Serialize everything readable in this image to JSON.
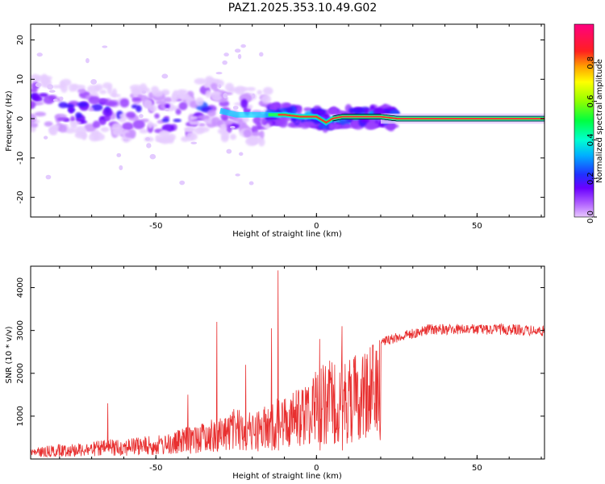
{
  "title": "PAZ1.2025.353.10.49.G02",
  "chart_data": [
    {
      "type": "heatmap",
      "title": "",
      "xlabel": "Height of straight line (km)",
      "ylabel": "Frequency (Hz)",
      "xlim": [
        -89,
        71
      ],
      "ylim": [
        -25,
        24
      ],
      "xticks": [
        -50,
        0,
        50
      ],
      "yticks": [
        -20,
        -10,
        0,
        10,
        20
      ],
      "ridge": {
        "x": [
          -89,
          -80,
          -70,
          -60,
          -50,
          -40,
          -35,
          -30,
          -25,
          -20,
          -15,
          -10,
          -5,
          0,
          3,
          5,
          8,
          10,
          15,
          20,
          25,
          40,
          55,
          71
        ],
        "frequency": [
          4,
          3,
          2,
          1.5,
          1,
          0.5,
          4,
          2,
          1,
          1,
          1,
          1,
          0.5,
          0.5,
          -1,
          0,
          0.5,
          0.5,
          0.5,
          0.5,
          0,
          0,
          0,
          0
        ]
      },
      "colorbar": {
        "label": "Normalized spectral amplitude",
        "range": [
          0,
          1
        ],
        "ticks": [
          0.0,
          0.2,
          0.4,
          0.6,
          0.8
        ],
        "tick_labels": [
          "0.0",
          "0.2",
          "0.4",
          "0.6",
          "0.8"
        ]
      }
    },
    {
      "type": "line",
      "title": "",
      "xlabel": "Height of straight line (km)",
      "ylabel": "SNR (10 * v/v)",
      "xlim": [
        -89,
        71
      ],
      "ylim": [
        0,
        4500
      ],
      "xticks": [
        -50,
        0,
        50
      ],
      "yticks": [
        1000,
        2000,
        3000,
        4000
      ],
      "color": "#e83030",
      "series": [
        {
          "name": "SNR",
          "envelope_x": [
            -89,
            -80,
            -70,
            -60,
            -50,
            -45,
            -40,
            -35,
            -30,
            -25,
            -20,
            -15,
            -10,
            -5,
            0,
            5,
            10,
            15,
            20,
            25,
            30,
            35,
            40,
            50,
            60,
            71
          ],
          "envelope_y": [
            250,
            350,
            400,
            500,
            550,
            600,
            800,
            900,
            1000,
            1200,
            1100,
            1300,
            1500,
            1700,
            2300,
            2300,
            2400,
            2700,
            2850,
            2950,
            3050,
            3150,
            3150,
            3150,
            3150,
            3100
          ],
          "spikes": [
            {
              "x": -31,
              "y": 3200
            },
            {
              "x": -12,
              "y": 4400
            },
            {
              "x": -14,
              "y": 3050
            },
            {
              "x": -22,
              "y": 2200
            },
            {
              "x": 1,
              "y": 2800
            },
            {
              "x": 8,
              "y": 3100
            },
            {
              "x": -40,
              "y": 1500
            },
            {
              "x": -65,
              "y": 1300
            }
          ]
        }
      ]
    }
  ]
}
